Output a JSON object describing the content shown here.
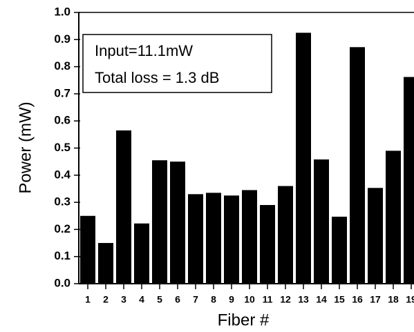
{
  "chart_data": {
    "type": "bar",
    "categories": [
      "1",
      "2",
      "3",
      "4",
      "5",
      "6",
      "7",
      "8",
      "9",
      "10",
      "11",
      "12",
      "13",
      "14",
      "15",
      "16",
      "17",
      "18",
      "19"
    ],
    "values": [
      0.25,
      0.15,
      0.565,
      0.222,
      0.455,
      0.45,
      0.33,
      0.335,
      0.325,
      0.345,
      0.29,
      0.36,
      0.925,
      0.458,
      0.247,
      0.872,
      0.353,
      0.49,
      0.762
    ],
    "color": "#000000",
    "xlabel": "Fiber #",
    "ylabel": "Power (mW)",
    "annotations": [
      "Input=11.1mW",
      "Total loss = 1.3 dB"
    ],
    "ylim": [
      0,
      1
    ],
    "yticks": [
      {
        "value": 0,
        "label": "0.0"
      },
      0.1,
      0.2,
      0.3,
      0.4,
      0.5,
      0.6,
      0.7,
      0.8,
      0.9,
      {
        "value": 1,
        "label": "1.0"
      }
    ],
    "grid": false
  }
}
